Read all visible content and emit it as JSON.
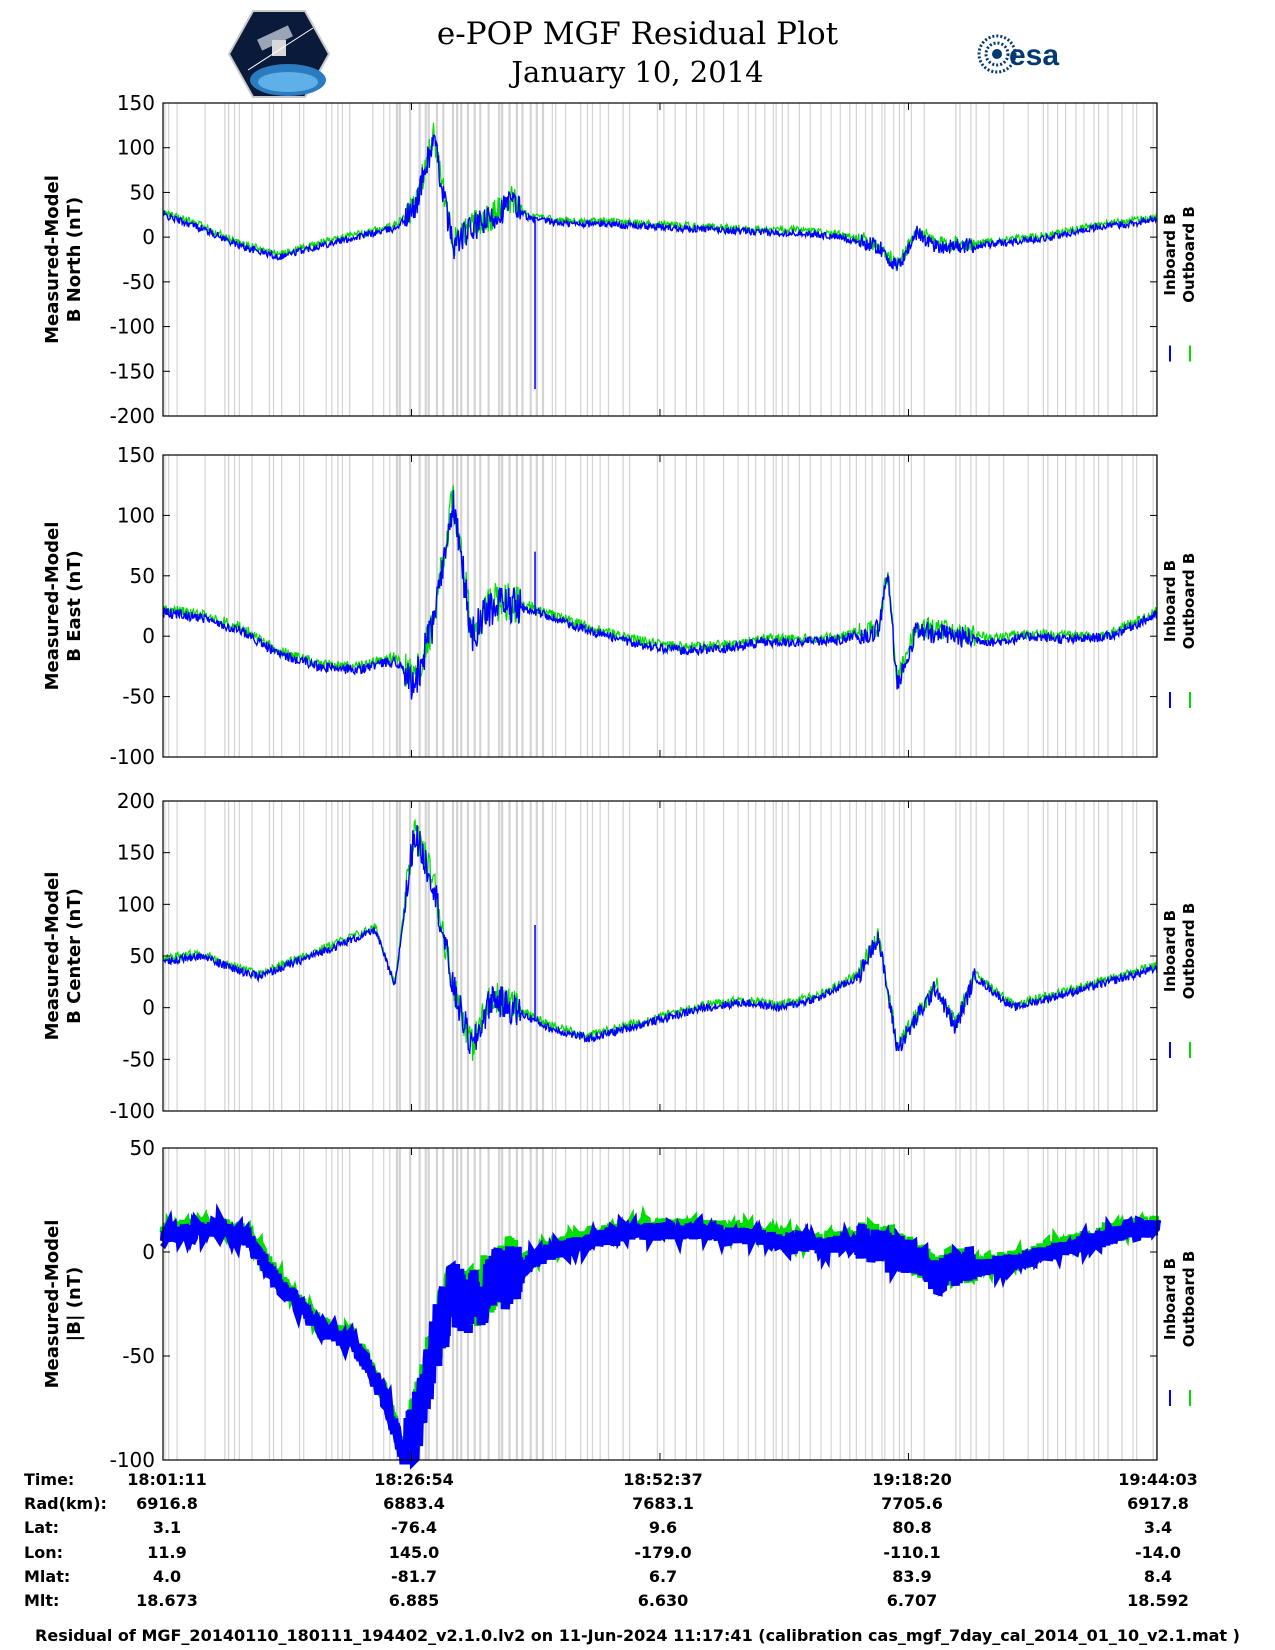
{
  "title": "e-POP MGF Residual Plot",
  "subtitle": "January 10, 2014",
  "logos": {
    "left": "cassiope-mission-patch",
    "right_text": "esa"
  },
  "colors": {
    "inboard": "#0000ff",
    "outboard": "#00dd00",
    "gap": "#d3d3d3"
  },
  "chart_data": [
    {
      "type": "line",
      "ylabel": [
        "Measured-Model",
        "B North (nT)"
      ],
      "ylim": [
        -200,
        150
      ],
      "yticks": [
        150,
        100,
        50,
        0,
        -50,
        -100,
        -150,
        -200
      ],
      "series": [
        {
          "name": "Inboard B",
          "color": "#0000ff"
        },
        {
          "name": "Outboard B",
          "color": "#00dd00"
        }
      ],
      "x_minutes": [
        0,
        4,
        8,
        12,
        16,
        20,
        24,
        26,
        28,
        30,
        32,
        34,
        36,
        38,
        42,
        46,
        50,
        54,
        58,
        62,
        66,
        70,
        74,
        76,
        78,
        80,
        84,
        88,
        92,
        96,
        100,
        102.9
      ],
      "y": [
        25,
        10,
        -10,
        -22,
        -10,
        0,
        10,
        30,
        110,
        -10,
        10,
        20,
        40,
        20,
        15,
        15,
        12,
        10,
        8,
        5,
        5,
        0,
        -10,
        -35,
        5,
        -10,
        -10,
        -5,
        0,
        10,
        15,
        20
      ],
      "spike": {
        "x_minutes": 38.5,
        "y": -170
      }
    },
    {
      "type": "line",
      "ylabel": [
        "Measured-Model",
        "B East (nT)"
      ],
      "ylim": [
        -100,
        150
      ],
      "yticks": [
        150,
        100,
        50,
        0,
        -50,
        -100
      ],
      "series": [
        {
          "name": "Inboard B",
          "color": "#0000ff"
        },
        {
          "name": "Outboard B",
          "color": "#00dd00"
        }
      ],
      "x_minutes": [
        0,
        4,
        8,
        12,
        16,
        20,
        24,
        26,
        28,
        30,
        32,
        34,
        36,
        38,
        42,
        46,
        50,
        54,
        58,
        62,
        66,
        70,
        74,
        75,
        76,
        78,
        82,
        86,
        90,
        94,
        98,
        102.9
      ],
      "y": [
        20,
        15,
        5,
        -15,
        -25,
        -28,
        -20,
        -40,
        10,
        110,
        0,
        25,
        25,
        22,
        10,
        0,
        -8,
        -12,
        -10,
        -5,
        -5,
        -3,
        5,
        50,
        -40,
        5,
        0,
        -5,
        0,
        -3,
        0,
        18
      ],
      "spike": {
        "x_minutes": 38.5,
        "y": 70
      }
    },
    {
      "type": "line",
      "ylabel": [
        "Measured-Model",
        "B Center (nT)"
      ],
      "ylim": [
        -100,
        200
      ],
      "yticks": [
        200,
        150,
        100,
        50,
        0,
        -50,
        -100
      ],
      "series": [
        {
          "name": "Inboard B",
          "color": "#0000ff"
        },
        {
          "name": "Outboard B",
          "color": "#00dd00"
        }
      ],
      "x_minutes": [
        0,
        4,
        8,
        10,
        14,
        18,
        22,
        24,
        26,
        28,
        30,
        32,
        34,
        36,
        40,
        44,
        48,
        52,
        56,
        60,
        64,
        68,
        72,
        74,
        76,
        80,
        82,
        84,
        88,
        92,
        96,
        102.9
      ],
      "y": [
        45,
        50,
        35,
        30,
        45,
        60,
        75,
        20,
        170,
        120,
        20,
        -40,
        10,
        0,
        -20,
        -30,
        -20,
        -10,
        0,
        5,
        0,
        10,
        30,
        70,
        -40,
        20,
        -20,
        30,
        0,
        10,
        20,
        38
      ],
      "spike": {
        "x_minutes": 38.5,
        "y": 80
      }
    },
    {
      "type": "line",
      "ylabel": [
        "Measured-Model",
        "|B| (nT)"
      ],
      "ylim": [
        -100,
        50
      ],
      "yticks": [
        50,
        0,
        -50,
        -100
      ],
      "series": [
        {
          "name": "Inboard B",
          "color": "#0000ff"
        },
        {
          "name": "Outboard B",
          "color": "#00dd00"
        }
      ],
      "x_minutes": [
        0,
        3,
        6,
        9,
        12,
        16,
        20,
        23,
        25,
        27,
        28,
        30,
        32,
        34,
        36,
        40,
        44,
        48,
        52,
        56,
        60,
        64,
        68,
        72,
        76,
        80,
        84,
        88,
        92,
        96,
        100,
        102.9
      ],
      "y": [
        8,
        10,
        12,
        5,
        -15,
        -35,
        -45,
        -70,
        -100,
        -70,
        -45,
        -20,
        -25,
        -15,
        -10,
        0,
        5,
        10,
        10,
        10,
        8,
        5,
        3,
        5,
        0,
        -10,
        -8,
        -5,
        0,
        5,
        10,
        12
      ]
    }
  ],
  "x_axis": {
    "range_minutes": [
      0,
      102.87
    ],
    "tick_minutes": [
      0,
      25.72,
      51.43,
      77.15,
      102.87
    ]
  },
  "ephemeris": {
    "labels": [
      "Time:",
      "Rad(km):",
      "Lat:",
      "Lon:",
      "Mlat:",
      "Mlt:"
    ],
    "columns": [
      [
        "18:01:11",
        "6916.8",
        "3.1",
        "11.9",
        "4.0",
        "18.673"
      ],
      [
        "18:26:54",
        "6883.4",
        "-76.4",
        "145.0",
        "-81.7",
        "6.885"
      ],
      [
        "18:52:37",
        "7683.1",
        "9.6",
        "-179.0",
        "6.7",
        "6.630"
      ],
      [
        "19:18:20",
        "7705.6",
        "80.8",
        "-110.1",
        "83.9",
        "6.707"
      ],
      [
        "19:44:03",
        "6917.8",
        "3.4",
        "-14.0",
        "8.4",
        "18.592"
      ]
    ]
  },
  "footer": "Residual of MGF_20140110_180111_194402_v2.1.0.lv2 on 11-Jun-2024 11:17:41 (calibration cas_mgf_7day_cal_2014_01_10_v2.1.mat )"
}
